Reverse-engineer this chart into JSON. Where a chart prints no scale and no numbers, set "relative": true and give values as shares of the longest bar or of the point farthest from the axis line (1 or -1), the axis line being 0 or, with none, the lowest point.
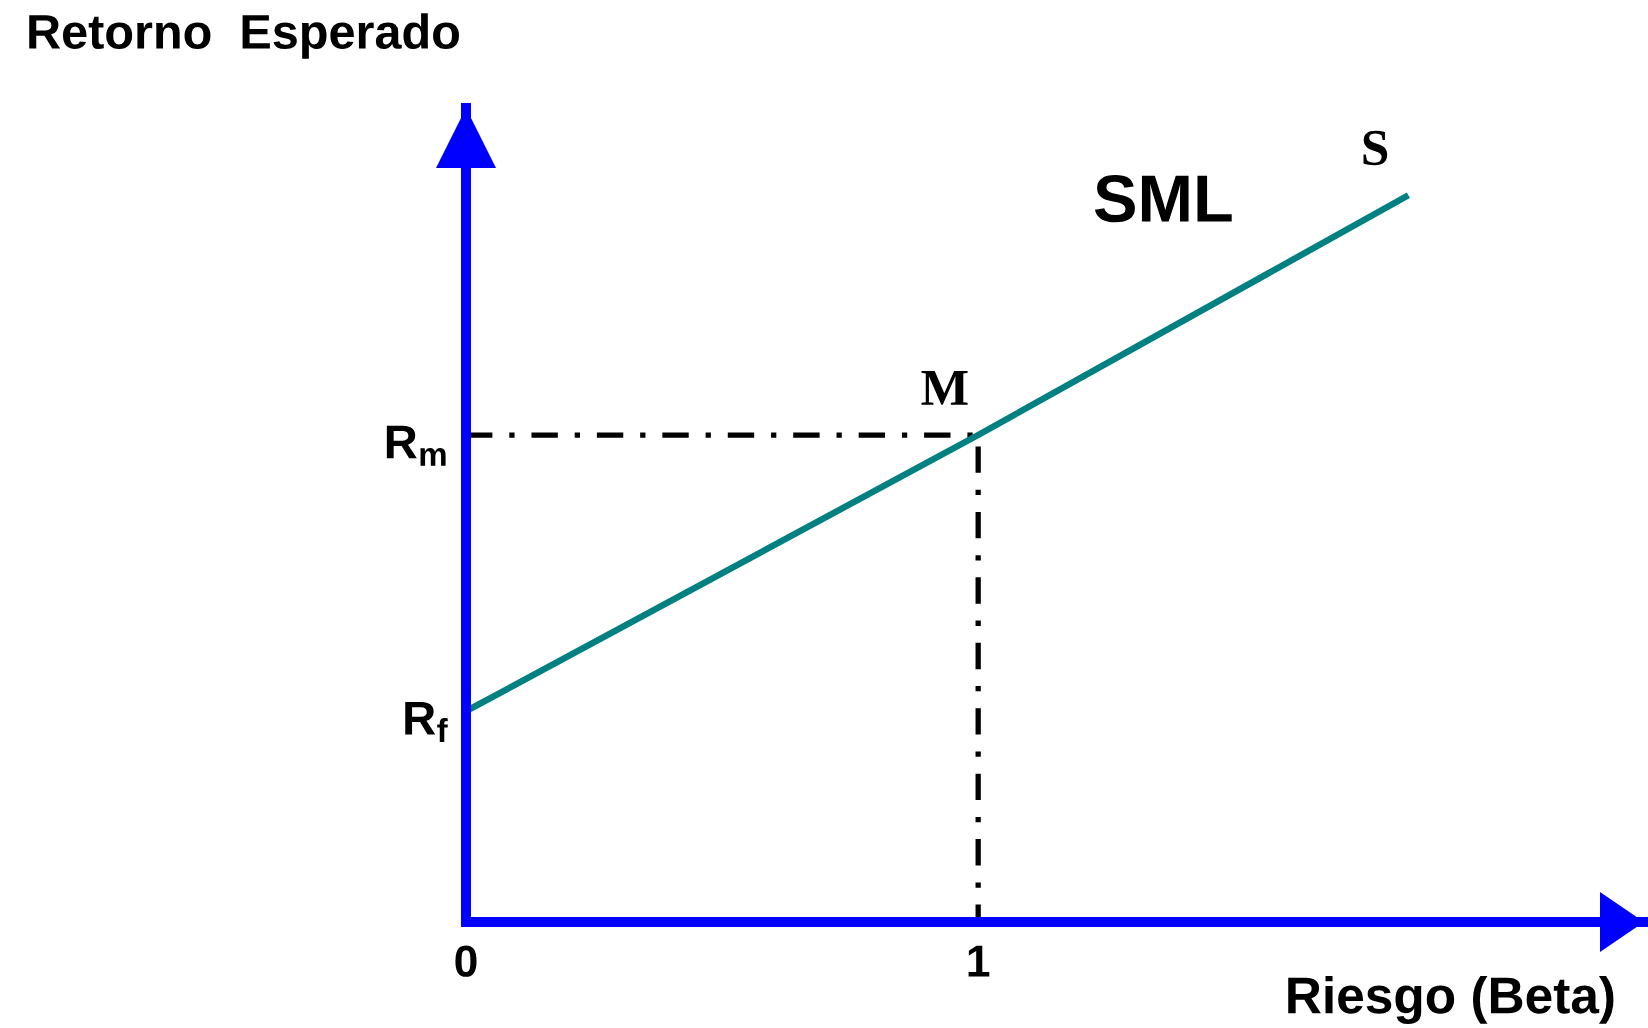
{
  "chart_data": {
    "type": "line",
    "xlabel": "Riesgo (Beta)",
    "ylabel": "Retorno  Esperado",
    "relative": true,
    "xlim": [
      0,
      2.3
    ],
    "xticks": [
      0,
      1
    ],
    "series": [
      {
        "name": "SML",
        "color": "#008080",
        "x": [
          0,
          1,
          1.84
        ],
        "values": [
          0.29,
          0.67,
          1
        ]
      },
      {
        "color": "#000000",
        "x": [
          0,
          1,
          1
        ],
        "values": [
          0.67,
          0.67,
          0
        ],
        "line_style": "dashdot"
      }
    ],
    "annotations": [
      {
        "text": "R$_{m}$",
        "x": 0,
        "y": 0.67
      },
      {
        "text": "R$_{f}$",
        "x": 0,
        "y": 0.29
      },
      {
        "text": "M",
        "x": 1,
        "y": 0.67
      },
      {
        "text": "S",
        "x": 1.84,
        "y": 1
      }
    ]
  }
}
